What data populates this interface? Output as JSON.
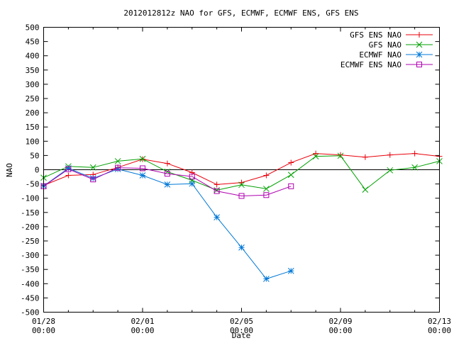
{
  "chart_data": {
    "type": "line",
    "title": "2012012812z NAO for GFS, ECMWF, ECMWF ENS, GFS ENS",
    "xlabel": "Date",
    "ylabel": "NAO",
    "xlim": [
      0,
      16
    ],
    "ylim": [
      -500,
      500
    ],
    "grid": false,
    "legend_position": "top-right",
    "x_ticks": [
      {
        "x": 0,
        "line1": "01/28",
        "line2": "00:00"
      },
      {
        "x": 4,
        "line1": "02/01",
        "line2": "00:00"
      },
      {
        "x": 8,
        "line1": "02/05",
        "line2": "00:00"
      },
      {
        "x": 12,
        "line1": "02/09",
        "line2": "00:00"
      },
      {
        "x": 16,
        "line1": "02/13",
        "line2": "00:00"
      }
    ],
    "y_ticks": [
      500,
      450,
      400,
      350,
      300,
      250,
      200,
      150,
      100,
      50,
      0,
      -50,
      -100,
      -150,
      -200,
      -250,
      -300,
      -350,
      -400,
      -450,
      -500
    ],
    "series": [
      {
        "name": "GFS ENS NAO",
        "color": "#e8000b",
        "marker": "plus",
        "points": [
          [
            0,
            -55
          ],
          [
            1,
            -20
          ],
          [
            2,
            -17
          ],
          [
            3,
            8
          ],
          [
            4,
            37
          ],
          [
            5,
            22
          ],
          [
            6,
            -10
          ],
          [
            7,
            -52
          ],
          [
            8,
            -45
          ],
          [
            9,
            -20
          ],
          [
            10,
            25
          ],
          [
            11,
            57
          ],
          [
            12,
            52
          ],
          [
            13,
            44
          ],
          [
            14,
            52
          ],
          [
            15,
            57
          ],
          [
            16,
            47
          ]
        ]
      },
      {
        "name": "GFS NAO",
        "color": "#00a000",
        "marker": "x",
        "points": [
          [
            0,
            -28
          ],
          [
            1,
            12
          ],
          [
            2,
            8
          ],
          [
            3,
            30
          ],
          [
            4,
            38
          ],
          [
            5,
            -7
          ],
          [
            6,
            -37
          ],
          [
            7,
            -72
          ],
          [
            8,
            -53
          ],
          [
            9,
            -67
          ],
          [
            10,
            -18
          ],
          [
            11,
            47
          ],
          [
            12,
            49
          ],
          [
            13,
            -70
          ],
          [
            14,
            -2
          ],
          [
            15,
            8
          ],
          [
            16,
            30
          ]
        ]
      },
      {
        "name": "ECMWF NAO",
        "color": "#0078d7",
        "marker": "star",
        "points": [
          [
            0,
            -57
          ],
          [
            1,
            5
          ],
          [
            2,
            -30
          ],
          [
            3,
            2
          ],
          [
            4,
            -20
          ],
          [
            5,
            -52
          ],
          [
            6,
            -49
          ],
          [
            7,
            -167
          ],
          [
            8,
            -273
          ],
          [
            9,
            -383
          ],
          [
            10,
            -355
          ]
        ]
      },
      {
        "name": "ECMWF ENS NAO",
        "color": "#b000b0",
        "marker": "square",
        "points": [
          [
            0,
            -58
          ],
          [
            1,
            2
          ],
          [
            2,
            -34
          ],
          [
            3,
            7
          ],
          [
            4,
            5
          ],
          [
            5,
            -14
          ],
          [
            6,
            -24
          ],
          [
            7,
            -75
          ],
          [
            8,
            -92
          ],
          [
            9,
            -89
          ],
          [
            10,
            -58
          ]
        ]
      }
    ]
  }
}
